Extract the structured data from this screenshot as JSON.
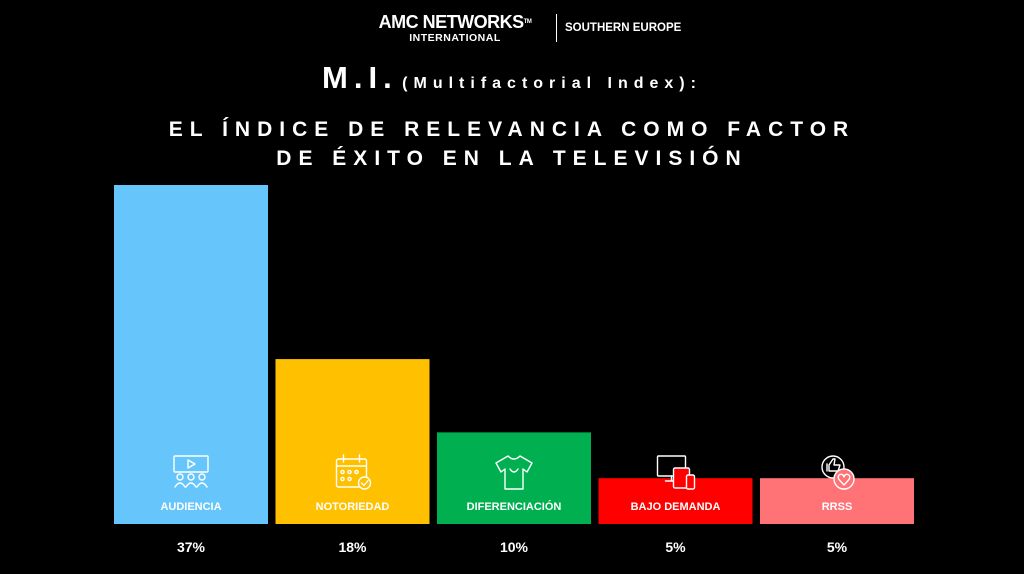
{
  "header": {
    "logo_main": "AMC NETWORKS",
    "logo_tm": "TM",
    "logo_sub": "INTERNATIONAL",
    "region": "SOUTHERN EUROPE"
  },
  "title": {
    "line1_main": "M.I.",
    "line1_sub": "(Multifactorial Index):",
    "line2": "EL ÍNDICE DE RELEVANCIA COMO FACTOR",
    "line3": "DE ÉXITO EN LA TELEVISIÓN"
  },
  "chart_data": {
    "type": "bar",
    "categories": [
      "AUDIENCIA",
      "NOTORIEDAD",
      "DIFERENCIACIÓN",
      "BAJO DEMANDA",
      "RRSS"
    ],
    "values": [
      37,
      18,
      10,
      5,
      5
    ],
    "value_labels": [
      "37%",
      "18%",
      "10%",
      "5%",
      "5%"
    ],
    "unit": "%",
    "colors": [
      "#66C5FB",
      "#FFC000",
      "#00B050",
      "#FF0000",
      "#FF7276"
    ],
    "icons": [
      "audience-screen-icon",
      "calendar-check-icon",
      "tshirt-icon",
      "devices-icon",
      "social-like-icon"
    ],
    "ylim": [
      0,
      37
    ],
    "grid": false,
    "legend": "none"
  }
}
